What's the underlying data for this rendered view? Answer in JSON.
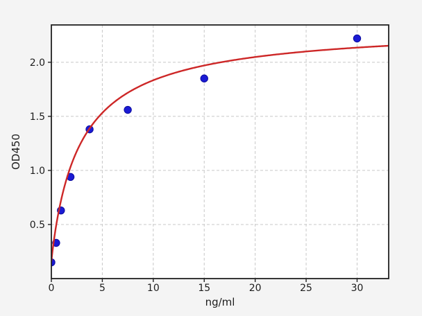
{
  "figure": {
    "background_color": "#f4f4f4",
    "plot_background_color": "#ffffff",
    "spine_color": "#212121",
    "grid_color": "#c8c8c8",
    "tick_text_color": "#1c1c1c"
  },
  "chart_data": {
    "type": "scatter",
    "title": "",
    "xlabel": "ng/ml",
    "ylabel": "OD450",
    "xlim": [
      0,
      33.1
    ],
    "ylim": [
      0,
      2.345
    ],
    "grid": true,
    "grid_style": "dashed",
    "legend": "none",
    "xticks": [
      0,
      5,
      10,
      15,
      20,
      25,
      30
    ],
    "xtick_labels": [
      "0",
      "5",
      "10",
      "15",
      "20",
      "25",
      "30"
    ],
    "yticks": [
      0.5,
      1.0,
      1.5,
      2.0
    ],
    "ytick_labels": [
      "0.5",
      "1.0",
      "1.5",
      "2.0"
    ],
    "series": [
      {
        "name": "standard-points",
        "kind": "scatter",
        "marker": "circle",
        "marker_color": "#1b1bd4",
        "marker_edge_color": "#0c0c9e",
        "marker_radius": 5.2,
        "x": [
          0,
          0.47,
          0.94,
          1.88,
          3.75,
          7.5,
          15,
          30
        ],
        "y": [
          0.15,
          0.33,
          0.63,
          0.94,
          1.38,
          1.56,
          1.85,
          2.22
        ]
      },
      {
        "name": "fit-curve",
        "kind": "line",
        "line_color": "#cd2727",
        "line_width": 2.4,
        "fit": {
          "model": "4PL",
          "a": 0.16,
          "b": 0.95,
          "c": 2.9,
          "d": 2.35
        },
        "x_range": [
          0,
          33.1
        ]
      }
    ]
  }
}
